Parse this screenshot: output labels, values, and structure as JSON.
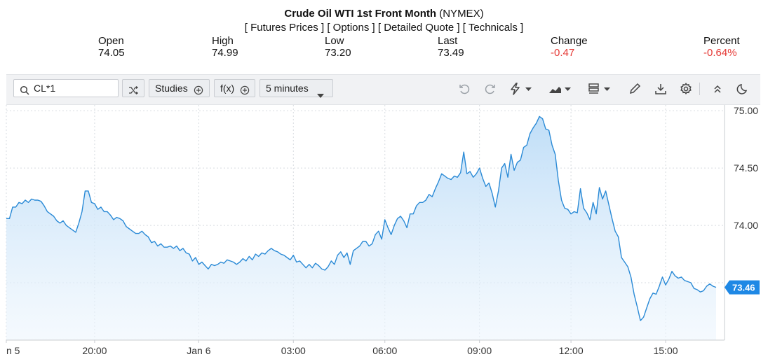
{
  "header": {
    "title_bold": "Crude Oil WTI 1st Front Month",
    "title_exchange": "(NYMEX)",
    "links": [
      "[ Futures Prices ]",
      "[ Options ]",
      "[ Detailed Quote ]",
      "[ Technicals ]"
    ]
  },
  "quote": {
    "open_label": "Open",
    "open": "74.05",
    "high_label": "High",
    "high": "74.99",
    "low_label": "Low",
    "low": "73.20",
    "last_label": "Last",
    "last": "73.49",
    "change_label": "Change",
    "change": "-0.47",
    "percent_label": "Percent",
    "percent": "-0.64%"
  },
  "toolbar": {
    "symbol_value": "CL*1",
    "studies_label": "Studies",
    "fx_label": "f(x)",
    "interval_label": "5 minutes",
    "icons": [
      "search-icon",
      "shuffle-icon",
      "plus-circle-icon",
      "chevron-down-icon",
      "undo-icon",
      "redo-icon",
      "lightning-icon",
      "area-chart-icon",
      "template-icon",
      "pencil-icon",
      "download-icon",
      "gear-icon",
      "chevrons-up-icon",
      "moon-icon"
    ]
  },
  "colors": {
    "line": "#2a8ad6",
    "accent": "#1e88e5",
    "negative": "#e53935"
  },
  "chart_data": {
    "type": "area",
    "ylim": [
      73.0,
      75.05
    ],
    "yticks": [
      "75.00",
      "74.50",
      "74.00"
    ],
    "ytick_values": [
      75.0,
      74.5,
      74.0
    ],
    "xticks": [
      "n 5",
      "20:00",
      "Jan 6",
      "03:00",
      "06:00",
      "09:00",
      "12:00",
      "15:00"
    ],
    "xtick_index": [
      0,
      28,
      61,
      91,
      120,
      150,
      179,
      209
    ],
    "last_value_label": "73.46",
    "last_value": 73.46,
    "grid": true,
    "values": [
      74.06,
      74.06,
      74.16,
      74.16,
      74.2,
      74.19,
      74.22,
      74.2,
      74.23,
      74.22,
      74.22,
      74.21,
      74.17,
      74.12,
      74.1,
      74.08,
      74.04,
      74.02,
      74.04,
      74.0,
      73.98,
      73.96,
      73.94,
      74.02,
      74.12,
      74.3,
      74.3,
      74.2,
      74.19,
      74.14,
      74.16,
      74.12,
      74.12,
      74.09,
      74.05,
      74.07,
      74.06,
      74.04,
      73.99,
      73.97,
      73.95,
      73.93,
      73.93,
      73.95,
      73.92,
      73.9,
      73.85,
      73.86,
      73.82,
      73.84,
      73.81,
      73.81,
      73.82,
      73.8,
      73.82,
      73.78,
      73.8,
      73.76,
      73.75,
      73.69,
      73.72,
      73.66,
      73.68,
      73.65,
      73.62,
      73.66,
      73.65,
      73.66,
      73.68,
      73.67,
      73.7,
      73.69,
      73.68,
      73.66,
      73.68,
      73.71,
      73.69,
      73.73,
      73.7,
      73.75,
      73.73,
      73.76,
      73.75,
      73.78,
      73.8,
      73.78,
      73.77,
      73.75,
      73.74,
      73.72,
      73.7,
      73.74,
      73.68,
      73.69,
      73.66,
      73.63,
      73.66,
      73.63,
      73.67,
      73.65,
      73.62,
      73.61,
      73.64,
      73.69,
      73.66,
      73.74,
      73.77,
      73.72,
      73.76,
      73.66,
      73.78,
      73.8,
      73.82,
      73.86,
      73.86,
      73.82,
      73.84,
      73.92,
      73.95,
      73.88,
      74.05,
      73.98,
      73.92,
      74.0,
      74.06,
      74.08,
      74.04,
      73.98,
      74.1,
      74.1,
      74.17,
      74.2,
      74.2,
      74.22,
      74.27,
      74.25,
      74.32,
      74.38,
      74.45,
      74.43,
      74.41,
      74.4,
      74.43,
      74.42,
      74.46,
      74.64,
      74.45,
      74.47,
      74.42,
      74.45,
      74.5,
      74.41,
      74.34,
      74.37,
      74.28,
      74.16,
      74.3,
      74.5,
      74.54,
      74.42,
      74.62,
      74.48,
      74.55,
      74.57,
      74.68,
      74.7,
      74.8,
      74.85,
      74.89,
      74.95,
      74.93,
      74.84,
      74.83,
      74.7,
      74.62,
      74.39,
      74.22,
      74.15,
      74.14,
      74.1,
      74.12,
      74.11,
      74.32,
      74.15,
      74.11,
      74.05,
      74.2,
      74.1,
      74.33,
      74.23,
      74.3,
      74.18,
      74.06,
      73.95,
      73.9,
      73.72,
      73.68,
      73.64,
      73.55,
      73.4,
      73.29,
      73.17,
      73.2,
      73.28,
      73.36,
      73.41,
      73.4,
      73.47,
      73.55,
      73.48,
      73.53,
      73.6,
      73.56,
      73.54,
      73.55,
      73.52,
      73.51,
      73.5,
      73.45,
      73.44,
      73.42,
      73.43,
      73.47,
      73.49,
      73.47,
      73.46
    ]
  }
}
